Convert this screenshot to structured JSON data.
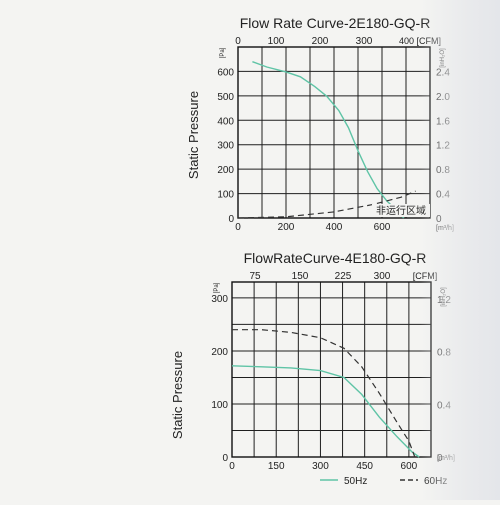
{
  "chart_data": [
    {
      "type": "line",
      "title": "Flow Rate Curve-2E180-GQ-R",
      "ylabel": "Static Pressure",
      "x_units": "[m³/h]",
      "top_units": "400 [CFM]",
      "y_units": "[Pa]",
      "right_units": "[inH₂O]",
      "x_ticks": [
        0,
        200,
        400,
        600
      ],
      "top_ticks": [
        "0",
        "100",
        "200",
        "300"
      ],
      "y_ticks": [
        0,
        100,
        200,
        300,
        400,
        500,
        600
      ],
      "right_ticks": [
        "0",
        "0.4",
        "0.8",
        "1.2",
        "1.6",
        "2.0",
        "2.4"
      ],
      "xlim": [
        0,
        800
      ],
      "ylim": [
        0,
        700
      ],
      "grid": true,
      "annotation": "非运行区域",
      "series": [
        {
          "color": "#5fc4a6",
          "style": "solid",
          "points": [
            [
              60,
              640
            ],
            [
              120,
              618
            ],
            [
              200,
              598
            ],
            [
              260,
              578
            ],
            [
              320,
              538
            ],
            [
              370,
              498
            ],
            [
              420,
              440
            ],
            [
              460,
              370
            ],
            [
              500,
              275
            ],
            [
              540,
              190
            ],
            [
              580,
              120
            ],
            [
              620,
              70
            ],
            [
              665,
              28
            ],
            [
              690,
              0
            ]
          ]
        },
        {
          "color": "#333333",
          "style": "dashed",
          "points": [
            [
              0,
              0
            ],
            [
              200,
              5
            ],
            [
              400,
              25
            ],
            [
              560,
              55
            ],
            [
              680,
              85
            ],
            [
              740,
              110
            ]
          ]
        }
      ]
    },
    {
      "type": "line",
      "title": "FlowRateCurve-4E180-GQ-R",
      "ylabel": "Static Pressure",
      "x_units": "[m³/h]",
      "top_units": "[CFM]",
      "y_units": "[Pa]",
      "right_units": "[inH₂O]",
      "x_ticks": [
        0,
        150,
        300,
        450,
        600
      ],
      "top_ticks": [
        "75",
        "150",
        "225",
        "300"
      ],
      "y_ticks": [
        0,
        100,
        200,
        300
      ],
      "right_ticks": [
        "0",
        "0.4",
        "0.8",
        "1.2"
      ],
      "xlim": [
        0,
        675
      ],
      "ylim": [
        0,
        330
      ],
      "grid": true,
      "legend": "bottom",
      "series": [
        {
          "name": "50Hz",
          "color": "#5fc4a6",
          "style": "solid",
          "points": [
            [
              0,
              172
            ],
            [
              100,
              170
            ],
            [
              200,
              168
            ],
            [
              300,
              163
            ],
            [
              380,
              150
            ],
            [
              440,
              118
            ],
            [
              500,
              75
            ],
            [
              560,
              38
            ],
            [
              610,
              10
            ],
            [
              635,
              0
            ]
          ]
        },
        {
          "name": "60Hz",
          "color": "#333333",
          "style": "dashed",
          "points": [
            [
              0,
              240
            ],
            [
              100,
              240
            ],
            [
              200,
              235
            ],
            [
              300,
              225
            ],
            [
              380,
              205
            ],
            [
              440,
              170
            ],
            [
              500,
              120
            ],
            [
              560,
              65
            ],
            [
              600,
              30
            ],
            [
              620,
              0
            ]
          ]
        }
      ]
    }
  ]
}
